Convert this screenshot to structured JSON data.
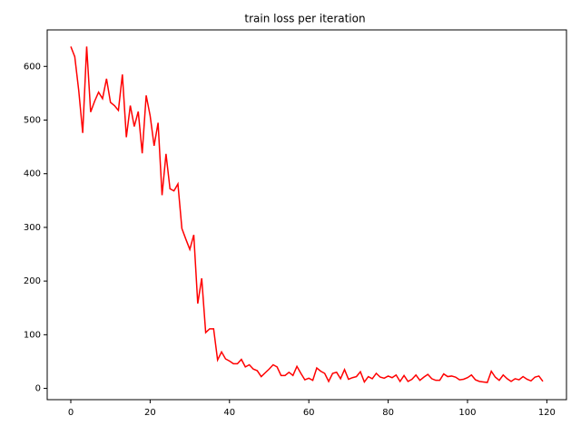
{
  "chart_data": {
    "type": "line",
    "title": "train loss per iteration",
    "x": [
      0,
      1,
      2,
      3,
      4,
      5,
      6,
      7,
      8,
      9,
      10,
      11,
      12,
      13,
      14,
      15,
      16,
      17,
      18,
      19,
      20,
      21,
      22,
      23,
      24,
      25,
      26,
      27,
      28,
      29,
      30,
      31,
      32,
      33,
      34,
      35,
      36,
      37,
      38,
      39,
      40,
      41,
      42,
      43,
      44,
      45,
      46,
      47,
      48,
      49,
      50,
      51,
      52,
      53,
      54,
      55,
      56,
      57,
      58,
      59,
      60,
      61,
      62,
      63,
      64,
      65,
      66,
      67,
      68,
      69,
      70,
      71,
      72,
      73,
      74,
      75,
      76,
      77,
      78,
      79,
      80,
      81,
      82,
      83,
      84,
      85,
      86,
      87,
      88,
      89,
      90,
      91,
      92,
      93,
      94,
      95,
      96,
      97,
      98,
      99,
      100,
      101,
      102,
      103,
      104,
      105,
      106,
      107,
      108,
      109,
      110,
      111,
      112,
      113,
      114,
      115,
      116,
      117,
      118,
      119
    ],
    "series": [
      {
        "color": "#ff0000",
        "values": [
          637,
          618,
          555,
          476,
          637,
          515,
          535,
          552,
          540,
          577,
          533,
          527,
          518,
          585,
          468,
          527,
          488,
          516,
          438,
          546,
          508,
          452,
          495,
          360,
          437,
          372,
          368,
          381,
          298,
          278,
          259,
          286,
          158,
          205,
          104,
          111,
          111,
          53,
          68,
          55,
          51,
          46,
          46,
          54,
          40,
          44,
          36,
          33,
          22,
          29,
          36,
          44,
          40,
          24,
          24,
          30,
          24,
          41,
          28,
          16,
          19,
          15,
          38,
          32,
          28,
          13,
          28,
          30,
          18,
          35,
          17,
          20,
          22,
          31,
          12,
          22,
          18,
          28,
          21,
          19,
          23,
          20,
          25,
          13,
          24,
          13,
          17,
          25,
          15,
          21,
          26,
          18,
          15,
          15,
          27,
          22,
          23,
          21,
          16,
          17,
          20,
          25,
          16,
          13,
          12,
          11,
          32,
          21,
          15,
          25,
          18,
          13,
          18,
          16,
          22,
          17,
          14,
          21,
          23,
          13
        ]
      }
    ],
    "xlim": [
      -5.95,
      124.95
    ],
    "ylim": [
      -21,
      668
    ],
    "xticks": [
      0,
      20,
      40,
      60,
      80,
      100,
      120
    ],
    "yticks": [
      0,
      100,
      200,
      300,
      400,
      500,
      600
    ]
  }
}
